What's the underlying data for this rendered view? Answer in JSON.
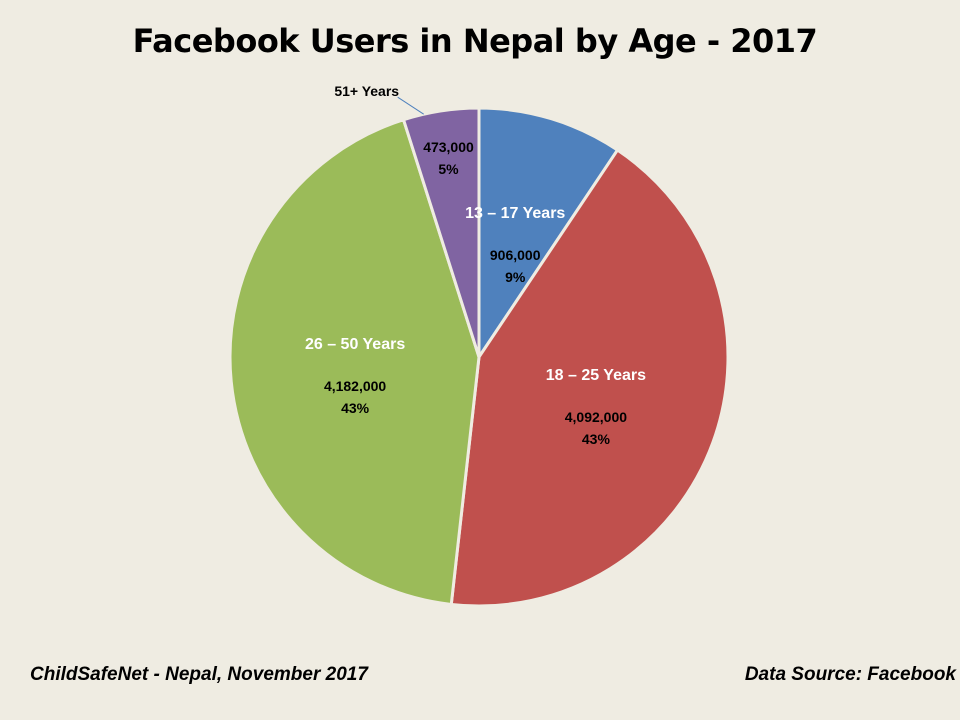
{
  "chart_data": {
    "type": "pie",
    "title": "Facebook Users in Nepal by Age - 2017",
    "slices": [
      {
        "label": "13 – 17 Years",
        "value": 906000,
        "value_text": "906,000",
        "percent_text": "9%",
        "color": "#4f81bd"
      },
      {
        "label": "18 – 25 Years",
        "value": 4092000,
        "value_text": "4,092,000",
        "percent_text": "43%",
        "color": "#c0504d"
      },
      {
        "label": "26 – 50 Years",
        "value": 4182000,
        "value_text": "4,182,000",
        "percent_text": "43%",
        "color": "#9bbb59"
      },
      {
        "label": "51+ Years",
        "value": 473000,
        "value_text": "473,000",
        "percent_text": "5%",
        "color": "#8064a2"
      }
    ]
  },
  "footer": {
    "left": "ChildSafeNet - Nepal, November 2017",
    "right": "Data Source: Facebook"
  },
  "colors": {
    "background": "#efece2",
    "slice_border": "#efece2"
  }
}
